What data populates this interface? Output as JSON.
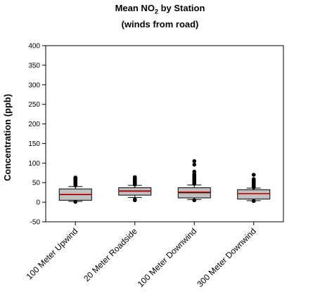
{
  "chart_data": {
    "type": "box",
    "title_main": "Mean NO",
    "title_sub": "2",
    "title_tail": " by Station",
    "title_line2": "(winds from road)",
    "xlabel": "",
    "ylabel": "Concentration (ppb)",
    "ylim": [
      -50,
      400
    ],
    "yticks": [
      "-50",
      "0",
      "50",
      "100",
      "150",
      "200",
      "250",
      "300",
      "350",
      "400"
    ],
    "categories": [
      "100 Meter Upwind",
      "20 Meter Roadside",
      "100 Meter Downwind",
      "300 Meter Downwind"
    ],
    "boxes": [
      {
        "whisker_low": 2,
        "q1": 5,
        "median": 19,
        "mean": 20,
        "q3": 34,
        "whisker_high": 40,
        "outliers": [
          43,
          45,
          47,
          49,
          51,
          53,
          55,
          57,
          59,
          61,
          63,
          1
        ]
      },
      {
        "whisker_low": 12,
        "q1": 18,
        "median": 29,
        "mean": 28,
        "q3": 37,
        "whisker_high": 43,
        "outliers": [
          45,
          47,
          49,
          51,
          53,
          55,
          57,
          59,
          61,
          64,
          5,
          7
        ]
      },
      {
        "whisker_low": 7,
        "q1": 11,
        "median": 24,
        "mean": 26,
        "q3": 37,
        "whisker_high": 44,
        "outliers": [
          47,
          49,
          51,
          53,
          55,
          57,
          59,
          61,
          63,
          65,
          67,
          69,
          72,
          78,
          96,
          105,
          5
        ]
      },
      {
        "whisker_low": 4,
        "q1": 8,
        "median": 22,
        "mean": 22,
        "q3": 32,
        "whisker_high": 36,
        "outliers": [
          38,
          40,
          43,
          45,
          47,
          49,
          52,
          55,
          59,
          70,
          3
        ]
      }
    ],
    "colors": {
      "box_fill": "#c0c0c0",
      "median": "#000000",
      "mean": "#cc0000"
    }
  }
}
